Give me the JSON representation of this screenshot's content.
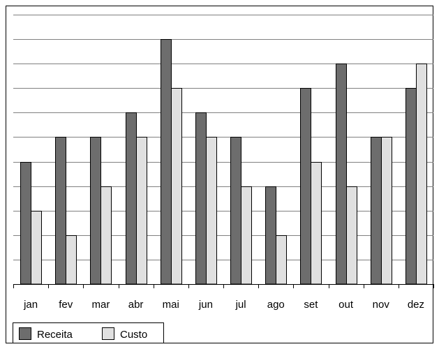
{
  "chart_data": {
    "type": "bar",
    "categories": [
      "jan",
      "fev",
      "mar",
      "abr",
      "mai",
      "jun",
      "jul",
      "ago",
      "set",
      "out",
      "nov",
      "dez"
    ],
    "series": [
      {
        "name": "Receita",
        "values": [
          5,
          6,
          6,
          7,
          10,
          7,
          6,
          4,
          8,
          9,
          6,
          8
        ]
      },
      {
        "name": "Custo",
        "values": [
          3,
          2,
          4,
          6,
          8,
          6,
          4,
          2,
          5,
          4,
          6,
          9
        ]
      }
    ],
    "ylim": [
      0,
      11
    ],
    "grid": true,
    "legend": "bottom-left",
    "colors": {
      "Receita": "#6d6d6d",
      "Custo": "#e0e0e0",
      "outline": "#000000",
      "gridline": "#808080"
    }
  }
}
